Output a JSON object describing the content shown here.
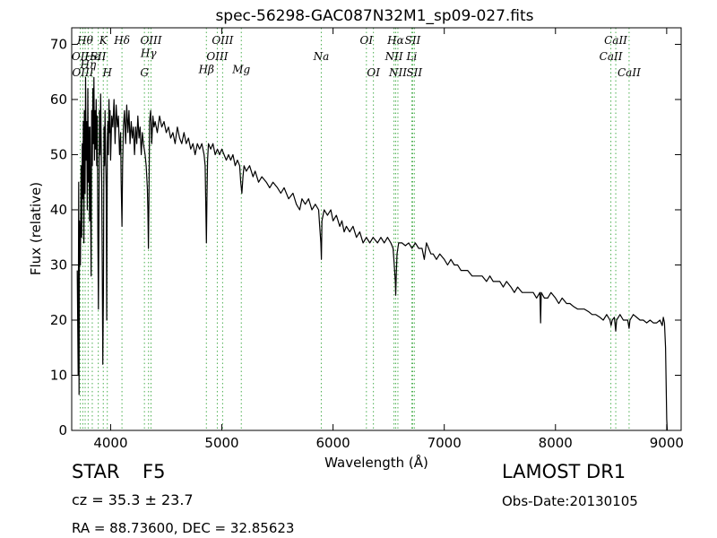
{
  "chart_data": {
    "type": "line",
    "title": "spec-56298-GAC087N32M1_sp09-027.fits",
    "xlabel": "Wavelength (Å)",
    "ylabel": "Flux (relative)",
    "xlim": [
      3650,
      9130
    ],
    "ylim": [
      0,
      73
    ],
    "xticks": [
      4000,
      5000,
      6000,
      7000,
      8000,
      9000
    ],
    "yticks": [
      0,
      10,
      20,
      30,
      40,
      50,
      60,
      70
    ],
    "grid": false,
    "series": [
      {
        "color": "#000000",
        "points": [
          [
            3700,
            29
          ],
          [
            3708,
            10
          ],
          [
            3713,
            45
          ],
          [
            3716,
            6.5
          ],
          [
            3720,
            38
          ],
          [
            3728,
            30
          ],
          [
            3735,
            48
          ],
          [
            3740,
            35
          ],
          [
            3745,
            52
          ],
          [
            3750,
            42
          ],
          [
            3755,
            56
          ],
          [
            3760,
            34
          ],
          [
            3764,
            58
          ],
          [
            3770,
            43
          ],
          [
            3775,
            64
          ],
          [
            3780,
            49
          ],
          [
            3785,
            56
          ],
          [
            3790,
            40
          ],
          [
            3795,
            62
          ],
          [
            3800,
            45
          ],
          [
            3805,
            55
          ],
          [
            3810,
            38
          ],
          [
            3815,
            55
          ],
          [
            3820,
            40
          ],
          [
            3825,
            28
          ],
          [
            3830,
            58
          ],
          [
            3835,
            48
          ],
          [
            3840,
            62
          ],
          [
            3845,
            52
          ],
          [
            3850,
            64
          ],
          [
            3855,
            49
          ],
          [
            3860,
            58
          ],
          [
            3865,
            51
          ],
          [
            3870,
            60
          ],
          [
            3875,
            48
          ],
          [
            3880,
            57
          ],
          [
            3885,
            35
          ],
          [
            3890,
            22
          ],
          [
            3895,
            38
          ],
          [
            3900,
            58
          ],
          [
            3905,
            50
          ],
          [
            3910,
            61
          ],
          [
            3915,
            52
          ],
          [
            3920,
            45
          ],
          [
            3925,
            30
          ],
          [
            3930,
            12
          ],
          [
            3935,
            25
          ],
          [
            3940,
            55
          ],
          [
            3945,
            48
          ],
          [
            3950,
            58
          ],
          [
            3955,
            50
          ],
          [
            3960,
            44
          ],
          [
            3965,
            20
          ],
          [
            3970,
            52
          ],
          [
            3975,
            56
          ],
          [
            3980,
            50
          ],
          [
            3985,
            60
          ],
          [
            3990,
            54
          ],
          [
            3995,
            58
          ],
          [
            4000,
            49
          ],
          [
            4010,
            57
          ],
          [
            4020,
            55
          ],
          [
            4030,
            60
          ],
          [
            4040,
            52
          ],
          [
            4050,
            59
          ],
          [
            4060,
            55
          ],
          [
            4070,
            57
          ],
          [
            4080,
            50
          ],
          [
            4090,
            54
          ],
          [
            4095,
            45
          ],
          [
            4102,
            37
          ],
          [
            4108,
            48
          ],
          [
            4115,
            55
          ],
          [
            4125,
            58
          ],
          [
            4135,
            52
          ],
          [
            4145,
            59
          ],
          [
            4155,
            54
          ],
          [
            4165,
            58
          ],
          [
            4175,
            52
          ],
          [
            4185,
            56
          ],
          [
            4195,
            53
          ],
          [
            4205,
            55
          ],
          [
            4215,
            50
          ],
          [
            4225,
            55
          ],
          [
            4235,
            52
          ],
          [
            4245,
            57
          ],
          [
            4255,
            53
          ],
          [
            4265,
            55
          ],
          [
            4275,
            50
          ],
          [
            4285,
            54
          ],
          [
            4295,
            52
          ],
          [
            4310,
            50
          ],
          [
            4320,
            48
          ],
          [
            4330,
            44
          ],
          [
            4335,
            40
          ],
          [
            4340,
            33
          ],
          [
            4345,
            42
          ],
          [
            4350,
            56
          ],
          [
            4360,
            58
          ],
          [
            4370,
            52
          ],
          [
            4380,
            57
          ],
          [
            4390,
            55
          ],
          [
            4400,
            56
          ],
          [
            4420,
            54
          ],
          [
            4440,
            57
          ],
          [
            4460,
            55
          ],
          [
            4480,
            56
          ],
          [
            4500,
            54
          ],
          [
            4520,
            55
          ],
          [
            4540,
            53
          ],
          [
            4560,
            54
          ],
          [
            4580,
            52
          ],
          [
            4600,
            55
          ],
          [
            4620,
            53
          ],
          [
            4640,
            52
          ],
          [
            4660,
            54
          ],
          [
            4680,
            52
          ],
          [
            4700,
            53
          ],
          [
            4720,
            51
          ],
          [
            4740,
            52
          ],
          [
            4760,
            50
          ],
          [
            4780,
            52
          ],
          [
            4800,
            51
          ],
          [
            4820,
            52
          ],
          [
            4840,
            50
          ],
          [
            4850,
            48
          ],
          [
            4855,
            42
          ],
          [
            4861,
            34
          ],
          [
            4866,
            42
          ],
          [
            4872,
            49
          ],
          [
            4880,
            52
          ],
          [
            4900,
            51
          ],
          [
            4920,
            52
          ],
          [
            4940,
            50
          ],
          [
            4960,
            51
          ],
          [
            4980,
            50
          ],
          [
            5000,
            51
          ],
          [
            5020,
            50
          ],
          [
            5040,
            49
          ],
          [
            5060,
            50
          ],
          [
            5080,
            49
          ],
          [
            5100,
            50
          ],
          [
            5120,
            48
          ],
          [
            5140,
            49
          ],
          [
            5160,
            48
          ],
          [
            5170,
            45
          ],
          [
            5180,
            43
          ],
          [
            5190,
            46
          ],
          [
            5200,
            48
          ],
          [
            5220,
            47
          ],
          [
            5250,
            48
          ],
          [
            5280,
            46
          ],
          [
            5300,
            47
          ],
          [
            5330,
            45
          ],
          [
            5360,
            46
          ],
          [
            5400,
            45
          ],
          [
            5430,
            44
          ],
          [
            5460,
            45
          ],
          [
            5500,
            44
          ],
          [
            5530,
            43
          ],
          [
            5560,
            44
          ],
          [
            5600,
            42
          ],
          [
            5640,
            43
          ],
          [
            5670,
            41
          ],
          [
            5700,
            40
          ],
          [
            5720,
            42
          ],
          [
            5750,
            41
          ],
          [
            5780,
            42
          ],
          [
            5810,
            40
          ],
          [
            5840,
            41
          ],
          [
            5870,
            40
          ],
          [
            5880,
            37
          ],
          [
            5890,
            34
          ],
          [
            5895,
            31
          ],
          [
            5900,
            38
          ],
          [
            5920,
            40
          ],
          [
            5950,
            39
          ],
          [
            5980,
            40
          ],
          [
            6000,
            38
          ],
          [
            6030,
            39
          ],
          [
            6060,
            37
          ],
          [
            6080,
            38
          ],
          [
            6100,
            36
          ],
          [
            6120,
            37
          ],
          [
            6150,
            36
          ],
          [
            6180,
            37
          ],
          [
            6210,
            35
          ],
          [
            6240,
            36
          ],
          [
            6270,
            34
          ],
          [
            6300,
            35
          ],
          [
            6330,
            34
          ],
          [
            6360,
            35
          ],
          [
            6400,
            34
          ],
          [
            6430,
            35
          ],
          [
            6460,
            34
          ],
          [
            6490,
            35
          ],
          [
            6520,
            34
          ],
          [
            6540,
            33
          ],
          [
            6550,
            30
          ],
          [
            6560,
            27
          ],
          [
            6563,
            24.5
          ],
          [
            6568,
            28
          ],
          [
            6575,
            32
          ],
          [
            6590,
            34
          ],
          [
            6620,
            34
          ],
          [
            6650,
            33.5
          ],
          [
            6680,
            34
          ],
          [
            6710,
            33
          ],
          [
            6740,
            34
          ],
          [
            6770,
            33
          ],
          [
            6800,
            33
          ],
          [
            6820,
            31
          ],
          [
            6840,
            34
          ],
          [
            6860,
            33
          ],
          [
            6880,
            32
          ],
          [
            6900,
            32
          ],
          [
            6930,
            31
          ],
          [
            6960,
            32
          ],
          [
            7000,
            31
          ],
          [
            7030,
            30
          ],
          [
            7060,
            31
          ],
          [
            7090,
            30
          ],
          [
            7120,
            30
          ],
          [
            7150,
            29
          ],
          [
            7180,
            29
          ],
          [
            7210,
            29
          ],
          [
            7250,
            28
          ],
          [
            7280,
            28
          ],
          [
            7310,
            28
          ],
          [
            7340,
            28
          ],
          [
            7380,
            27
          ],
          [
            7410,
            28
          ],
          [
            7440,
            27
          ],
          [
            7470,
            27
          ],
          [
            7500,
            27
          ],
          [
            7530,
            26
          ],
          [
            7560,
            27
          ],
          [
            7600,
            26
          ],
          [
            7630,
            25
          ],
          [
            7660,
            26
          ],
          [
            7700,
            25
          ],
          [
            7730,
            25
          ],
          [
            7760,
            25
          ],
          [
            7800,
            25
          ],
          [
            7830,
            24
          ],
          [
            7860,
            25
          ],
          [
            7866,
            19.5
          ],
          [
            7872,
            25
          ],
          [
            7900,
            24
          ],
          [
            7930,
            24
          ],
          [
            7960,
            25
          ],
          [
            8000,
            24
          ],
          [
            8030,
            23
          ],
          [
            8060,
            24
          ],
          [
            8100,
            23
          ],
          [
            8130,
            23
          ],
          [
            8160,
            22.5
          ],
          [
            8200,
            22
          ],
          [
            8230,
            22
          ],
          [
            8260,
            22
          ],
          [
            8300,
            21.5
          ],
          [
            8330,
            21
          ],
          [
            8360,
            21
          ],
          [
            8400,
            20.5
          ],
          [
            8430,
            20
          ],
          [
            8460,
            21
          ],
          [
            8490,
            20
          ],
          [
            8500,
            19
          ],
          [
            8510,
            20
          ],
          [
            8530,
            20.5
          ],
          [
            8542,
            18
          ],
          [
            8550,
            20
          ],
          [
            8580,
            21
          ],
          [
            8610,
            20
          ],
          [
            8650,
            20
          ],
          [
            8662,
            18.5
          ],
          [
            8670,
            20
          ],
          [
            8700,
            21
          ],
          [
            8730,
            20.5
          ],
          [
            8760,
            20
          ],
          [
            8790,
            20
          ],
          [
            8820,
            19.5
          ],
          [
            8850,
            20
          ],
          [
            8880,
            19.5
          ],
          [
            8910,
            19.5
          ],
          [
            8940,
            20
          ],
          [
            8960,
            19
          ],
          [
            8970,
            20.5
          ],
          [
            8980,
            19.5
          ],
          [
            8990,
            15
          ],
          [
            9000,
            2
          ],
          [
            9005,
            0
          ]
        ]
      }
    ],
    "lines": [
      {
        "wl": 3727,
        "label": "OII",
        "row": 1
      },
      {
        "wl": 3750,
        "label": "OIII",
        "row": 2
      },
      {
        "wl": 3771,
        "label": "Hθ",
        "row": 0
      },
      {
        "wl": 3798,
        "label": "Hη",
        "row": 1.5
      },
      {
        "wl": 3835,
        "label": "Hϵ",
        "row": 1
      },
      {
        "wl": 3889,
        "label": "SII",
        "row": 1
      },
      {
        "wl": 3934,
        "label": "K",
        "row": 0
      },
      {
        "wl": 3970,
        "label": "H",
        "row": 2
      },
      {
        "wl": 4102,
        "label": "Hδ",
        "row": 0
      },
      {
        "wl": 4304,
        "label": "G",
        "row": 2
      },
      {
        "wl": 4341,
        "label": "Hγ",
        "row": 0.8
      },
      {
        "wl": 4363,
        "label": "OIII",
        "row": 0
      },
      {
        "wl": 4861,
        "label": "Hβ",
        "row": 1.8
      },
      {
        "wl": 4959,
        "label": "OIII",
        "row": 1
      },
      {
        "wl": 5007,
        "label": "OIII",
        "row": 0
      },
      {
        "wl": 5175,
        "label": "Mg",
        "row": 1.8
      },
      {
        "wl": 5894,
        "label": "Na",
        "row": 1
      },
      {
        "wl": 6300,
        "label": "OI",
        "row": 0
      },
      {
        "wl": 6363,
        "label": "OI",
        "row": 2
      },
      {
        "wl": 6548,
        "label": "NII",
        "row": 1
      },
      {
        "wl": 6563,
        "label": "Hα",
        "row": 0
      },
      {
        "wl": 6583,
        "label": "NII",
        "row": 2
      },
      {
        "wl": 6708,
        "label": "Li",
        "row": 1
      },
      {
        "wl": 6716,
        "label": "SII",
        "row": 0
      },
      {
        "wl": 6731,
        "label": "SII",
        "row": 2
      },
      {
        "wl": 8498,
        "label": "CaII",
        "row": 1
      },
      {
        "wl": 8542,
        "label": "CaII",
        "row": 0
      },
      {
        "wl": 8662,
        "label": "CaII",
        "row": 2
      }
    ]
  },
  "info": {
    "class_label": "STAR",
    "subclass": "F5",
    "cz": "cz = 35.3 ± 23.7",
    "coords": "RA = 88.73600, DEC = 32.85623",
    "survey": "LAMOST DR1",
    "obs_date": "Obs-Date:20130105"
  }
}
